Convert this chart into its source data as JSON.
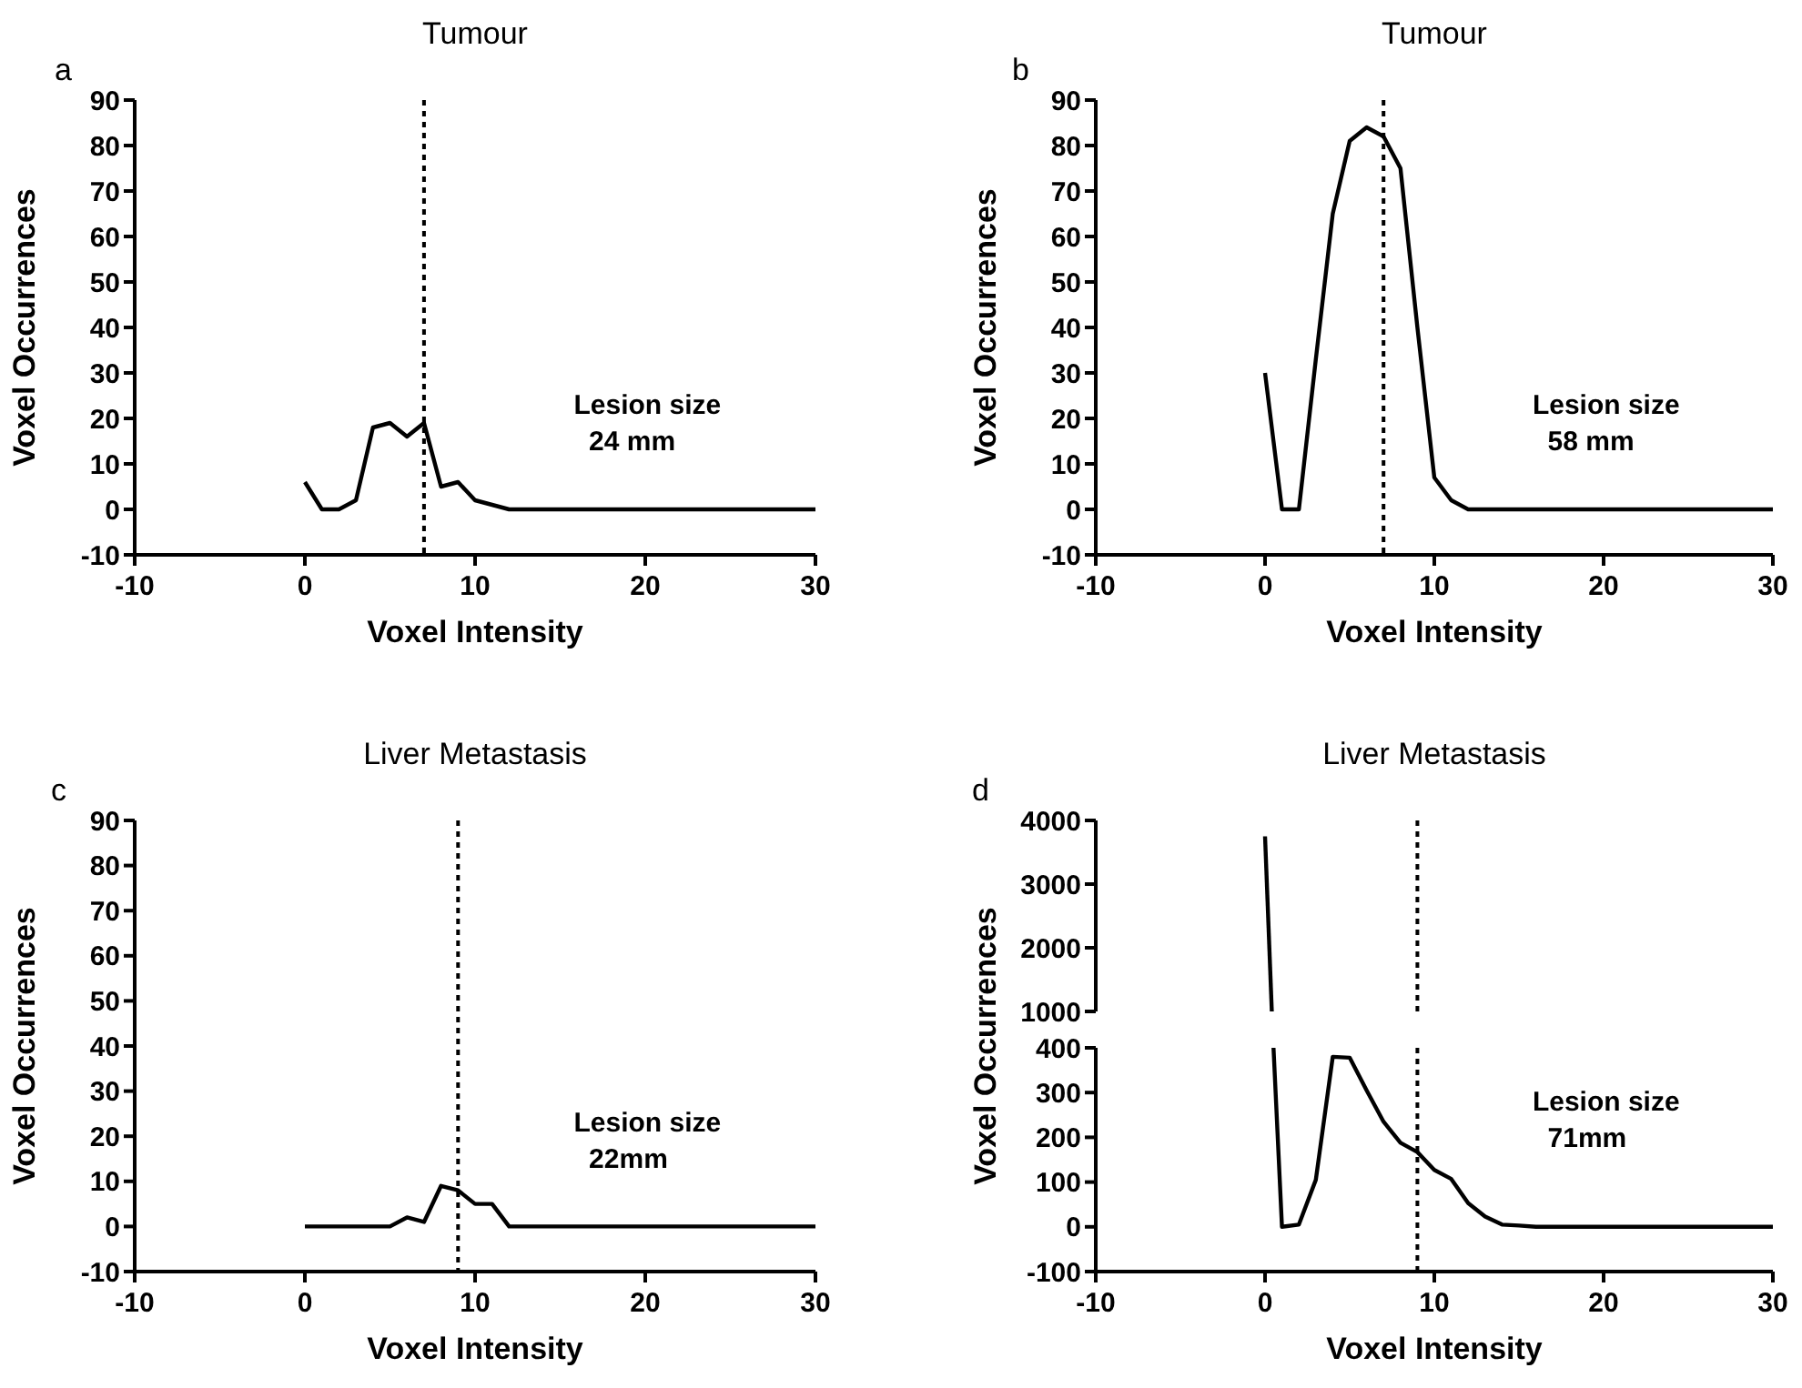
{
  "chart_data": [
    {
      "type": "line",
      "title": "Tumour",
      "xlabel": "Voxel Intensity",
      "ylabel": "Voxel Occurrences",
      "annotations": [
        "a",
        "Lesion size\n  24 mm"
      ],
      "xlim": [
        -10,
        30
      ],
      "xticks": [
        -10,
        0,
        10,
        20,
        30
      ],
      "ylim": [
        -10,
        90
      ],
      "yticks": [
        -10,
        0,
        10,
        20,
        30,
        40,
        50,
        60,
        70,
        80,
        90
      ],
      "ref_lines": [
        {
          "axis": "x",
          "value": 7,
          "line_style": "dotted",
          "color": "#000000"
        }
      ],
      "series": [
        {
          "color": "#000000",
          "x": [
            0,
            1,
            2,
            3,
            4,
            5,
            6,
            7,
            8,
            9,
            10,
            11,
            12,
            13,
            14,
            15,
            16,
            17,
            18,
            19,
            20,
            21,
            22,
            23,
            24,
            25,
            26,
            27,
            28,
            29,
            30
          ],
          "values": [
            6,
            0,
            0,
            2,
            18,
            19,
            16,
            19,
            5,
            6,
            2,
            1,
            0,
            0,
            0,
            0,
            0,
            0,
            0,
            0,
            0,
            0,
            0,
            0,
            0,
            0,
            0,
            0,
            0,
            0,
            0
          ]
        }
      ]
    },
    {
      "type": "line",
      "title": "Tumour",
      "xlabel": "Voxel Intensity",
      "ylabel": "Voxel Occurrences",
      "annotations": [
        "b",
        "Lesion size\n  58 mm"
      ],
      "xlim": [
        -10,
        30
      ],
      "xticks": [
        -10,
        0,
        10,
        20,
        30
      ],
      "ylim": [
        -10,
        90
      ],
      "yticks": [
        -10,
        0,
        10,
        20,
        30,
        40,
        50,
        60,
        70,
        80,
        90
      ],
      "ref_lines": [
        {
          "axis": "x",
          "value": 7,
          "line_style": "dotted",
          "color": "#000000"
        }
      ],
      "series": [
        {
          "color": "#000000",
          "x": [
            0,
            1,
            2,
            3,
            4,
            5,
            6,
            7,
            8,
            9,
            10,
            11,
            12,
            13,
            14,
            15,
            16,
            17,
            18,
            19,
            20,
            21,
            22,
            23,
            24,
            25,
            26,
            27,
            28,
            29,
            30
          ],
          "values": [
            30,
            0,
            0,
            33,
            65,
            81,
            84,
            82,
            75,
            40,
            7,
            2,
            0,
            0,
            0,
            0,
            0,
            0,
            0,
            0,
            0,
            0,
            0,
            0,
            0,
            0,
            0,
            0,
            0,
            0,
            0
          ]
        }
      ]
    },
    {
      "type": "line",
      "title": "Liver Metastasis",
      "xlabel": "Voxel Intensity",
      "ylabel": "Voxel Occurrences",
      "annotations": [
        "c",
        "Lesion size\n  22mm"
      ],
      "xlim": [
        -10,
        30
      ],
      "xticks": [
        -10,
        0,
        10,
        20,
        30
      ],
      "ylim": [
        -10,
        90
      ],
      "yticks": [
        -10,
        0,
        10,
        20,
        30,
        40,
        50,
        60,
        70,
        80,
        90
      ],
      "ref_lines": [
        {
          "axis": "x",
          "value": 9,
          "line_style": "dotted",
          "color": "#000000"
        }
      ],
      "series": [
        {
          "color": "#000000",
          "x": [
            0,
            1,
            2,
            3,
            4,
            5,
            6,
            7,
            8,
            9,
            10,
            11,
            12,
            13,
            14,
            15,
            16,
            17,
            18,
            19,
            20,
            21,
            22,
            23,
            24,
            25,
            26,
            27,
            28,
            29,
            30
          ],
          "values": [
            0,
            0,
            0,
            0,
            0,
            0,
            2,
            1,
            9,
            8,
            5,
            5,
            0,
            0,
            0,
            0,
            0,
            0,
            0,
            0,
            0,
            0,
            0,
            0,
            0,
            0,
            0,
            0,
            0,
            0,
            0
          ]
        }
      ]
    },
    {
      "type": "line",
      "title": "Liver Metastasis",
      "annotations": [
        "d"
      ],
      "xlim": [
        -10,
        30
      ],
      "ylim": [
        1000,
        4000
      ],
      "yticks": [
        1000,
        2000,
        3000,
        4000
      ],
      "tick_labels": "y",
      "ref_lines": [
        {
          "axis": "x",
          "value": 9,
          "line_style": "dotted",
          "color": "#000000"
        }
      ],
      "series": [
        {
          "color": "#000000",
          "x": [
            0,
            0.4
          ],
          "values": [
            3750,
            1000
          ]
        }
      ]
    },
    {
      "type": "line",
      "xlabel": "Voxel Intensity",
      "ylabel": "Voxel Occurrences",
      "annotations": [
        "Lesion size\n  71mm"
      ],
      "xlim": [
        -10,
        30
      ],
      "xticks": [
        -10,
        0,
        10,
        20,
        30
      ],
      "ylim": [
        -100,
        400
      ],
      "yticks": [
        -100,
        0,
        100,
        200,
        300,
        400
      ],
      "ref_lines": [
        {
          "axis": "x",
          "value": 9,
          "line_style": "dotted",
          "color": "#000000"
        }
      ],
      "series": [
        {
          "color": "#000000",
          "x": [
            0.5,
            1,
            2,
            3,
            4,
            5,
            6,
            7,
            8,
            9,
            10,
            11,
            12,
            13,
            14,
            15,
            16,
            17,
            18,
            19,
            20,
            21,
            22,
            23,
            24,
            25,
            26,
            27,
            28,
            29,
            30
          ],
          "values": [
            400,
            0,
            5,
            105,
            380,
            378,
            305,
            235,
            188,
            167,
            127,
            107,
            53,
            23,
            5,
            3,
            0,
            0,
            0,
            0,
            0,
            0,
            0,
            0,
            0,
            0,
            0,
            0,
            0,
            0,
            0
          ]
        }
      ]
    }
  ]
}
